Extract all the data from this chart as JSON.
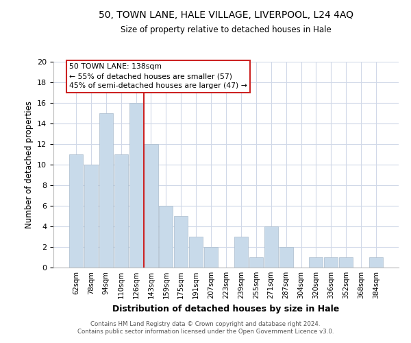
{
  "title": "50, TOWN LANE, HALE VILLAGE, LIVERPOOL, L24 4AQ",
  "subtitle": "Size of property relative to detached houses in Hale",
  "xlabel": "Distribution of detached houses by size in Hale",
  "ylabel": "Number of detached properties",
  "bar_color": "#c8daea",
  "bar_edge_color": "#aabccc",
  "highlight_color": "#cc2222",
  "categories": [
    "62sqm",
    "78sqm",
    "94sqm",
    "110sqm",
    "126sqm",
    "143sqm",
    "159sqm",
    "175sqm",
    "191sqm",
    "207sqm",
    "223sqm",
    "239sqm",
    "255sqm",
    "271sqm",
    "287sqm",
    "304sqm",
    "320sqm",
    "336sqm",
    "352sqm",
    "368sqm",
    "384sqm"
  ],
  "values": [
    11,
    10,
    15,
    11,
    16,
    12,
    6,
    5,
    3,
    2,
    0,
    3,
    1,
    4,
    2,
    0,
    1,
    1,
    1,
    0,
    1
  ],
  "highlight_index": 5,
  "ylim": [
    0,
    20
  ],
  "yticks": [
    0,
    2,
    4,
    6,
    8,
    10,
    12,
    14,
    16,
    18,
    20
  ],
  "annotation_title": "50 TOWN LANE: 138sqm",
  "annotation_line1": "← 55% of detached houses are smaller (57)",
  "annotation_line2": "45% of semi-detached houses are larger (47) →",
  "footer_line1": "Contains HM Land Registry data © Crown copyright and database right 2024.",
  "footer_line2": "Contains public sector information licensed under the Open Government Licence v3.0.",
  "background_color": "#ffffff",
  "grid_color": "#d0d8e8"
}
